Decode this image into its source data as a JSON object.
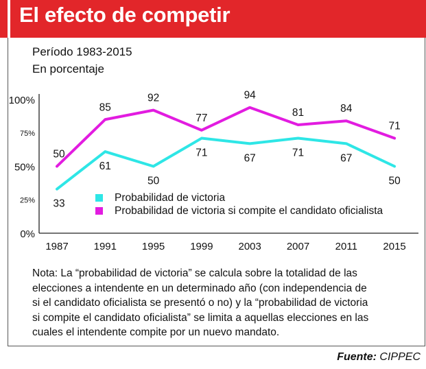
{
  "header": {
    "title": "El efecto de competir"
  },
  "subtitle": {
    "line1": "Período 1983-2015",
    "line2": "En porcentaje"
  },
  "chart_data": {
    "type": "line",
    "title": "",
    "xlabel": "",
    "ylabel": "",
    "categories": [
      "1987",
      "1991",
      "1995",
      "1999",
      "2003",
      "2007",
      "2011",
      "2015"
    ],
    "ylim": [
      0,
      100
    ],
    "yticks": [
      {
        "value": 0,
        "label": "0%"
      },
      {
        "value": 25,
        "label": "25%"
      },
      {
        "value": 50,
        "label": "50%"
      },
      {
        "value": 75,
        "label": "75%"
      },
      {
        "value": 100,
        "label": "100%"
      }
    ],
    "grid": false,
    "legend_position": "bottom-right",
    "series": [
      {
        "name": "Probabilidad de victoria",
        "color": "#2ee6e6",
        "values": [
          33,
          61,
          50,
          71,
          67,
          71,
          67,
          50
        ],
        "labels": [
          "33",
          "61",
          "50",
          "71",
          "67",
          "71",
          "67",
          "50"
        ]
      },
      {
        "name": "Probabilidad de victoria si compite el candidato oficialista",
        "color": "#e21ce0",
        "values": [
          50,
          85,
          92,
          77,
          94,
          81,
          84,
          71
        ],
        "labels": [
          "50",
          "85",
          "92",
          "77",
          "94",
          "81",
          "84",
          "71"
        ]
      }
    ]
  },
  "note": {
    "lines": [
      "Nota: La “probabilidad de victoria” se calcula sobre la totalidad de las",
      "elecciones a intendente en un determinado año (con independencia de",
      "si el candidato oficialista se presentó o no) y la “probabilidad de victoria",
      "si compite el candidato oficialista” se limita a aquellas elecciones en las",
      "cuales el intendente compite por un nuevo mandato."
    ]
  },
  "source": {
    "label": "Fuente:",
    "value": "CIPPEC"
  }
}
